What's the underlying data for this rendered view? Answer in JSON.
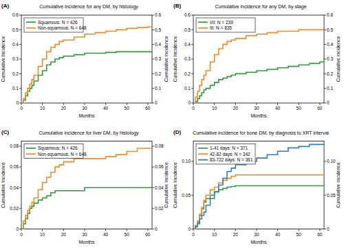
{
  "chart_data": [
    {
      "type": "line",
      "title": "Cumulative incidence for any DM, by histology",
      "annotations": [
        "(A)"
      ],
      "x_label": "Months",
      "y_label": "Cumulative Incidence",
      "y2_label": "Cumulative incidence",
      "x": [
        0,
        1,
        2,
        3,
        4,
        5,
        6,
        8,
        10,
        12,
        14,
        16,
        18,
        20,
        25,
        30,
        35,
        40,
        45,
        50,
        55,
        60,
        62
      ],
      "series": [
        {
          "name": "Squamous: N = 426",
          "color": "#2e9a3a",
          "values": [
            0,
            0.02,
            0.05,
            0.08,
            0.1,
            0.12,
            0.15,
            0.19,
            0.22,
            0.26,
            0.28,
            0.3,
            0.31,
            0.32,
            0.33,
            0.34,
            0.34,
            0.345,
            0.35,
            0.35,
            0.35,
            0.35,
            0.35
          ]
        },
        {
          "name": "Non-squamous: N = 648",
          "color": "#f28a24",
          "values": [
            0,
            0.03,
            0.07,
            0.1,
            0.13,
            0.16,
            0.19,
            0.25,
            0.3,
            0.35,
            0.38,
            0.4,
            0.42,
            0.43,
            0.45,
            0.47,
            0.48,
            0.49,
            0.5,
            0.51,
            0.515,
            0.52,
            0.52
          ]
        }
      ],
      "line_style": "step",
      "legend": "upper left",
      "grid": false,
      "xlim": [
        0,
        62
      ],
      "xticks": [
        0,
        10,
        20,
        30,
        40,
        50,
        60
      ],
      "ylim": [
        0,
        0.6
      ],
      "yticks": [
        0,
        0.1,
        0.2,
        0.3,
        0.4,
        0.5,
        0.6
      ],
      "y2lim": [
        0,
        0.6
      ],
      "y2ticks": [
        0,
        0.1,
        0.2,
        0.3,
        0.4,
        0.5,
        0.6
      ]
    },
    {
      "type": "line",
      "title": "Cumulative incidence for any DM, by stage",
      "annotations": [
        "(B)"
      ],
      "x_label": "Months",
      "y_label": "Cumulative Incidence",
      "y2_label": "Cumulative incidence",
      "x": [
        0,
        1,
        2,
        3,
        4,
        5,
        6,
        8,
        10,
        12,
        14,
        16,
        18,
        20,
        25,
        30,
        35,
        40,
        45,
        50,
        55,
        60,
        62
      ],
      "series": [
        {
          "name": "I/II: N = 239",
          "color": "#2e9a3a",
          "values": [
            0,
            0.01,
            0.03,
            0.05,
            0.07,
            0.09,
            0.1,
            0.12,
            0.14,
            0.16,
            0.17,
            0.18,
            0.19,
            0.2,
            0.21,
            0.22,
            0.23,
            0.24,
            0.25,
            0.26,
            0.27,
            0.28,
            0.29
          ]
        },
        {
          "name": "III: N = 835",
          "color": "#f28a24",
          "values": [
            0,
            0.04,
            0.08,
            0.12,
            0.16,
            0.19,
            0.22,
            0.28,
            0.33,
            0.37,
            0.4,
            0.42,
            0.43,
            0.44,
            0.46,
            0.47,
            0.48,
            0.49,
            0.49,
            0.5,
            0.5,
            0.5,
            0.5
          ]
        }
      ],
      "line_style": "step",
      "legend": "upper left",
      "grid": false,
      "xlim": [
        0,
        62
      ],
      "xticks": [
        0,
        10,
        20,
        30,
        40,
        50,
        60
      ],
      "ylim": [
        0,
        0.6
      ],
      "yticks": [
        0,
        0.1,
        0.2,
        0.3,
        0.4,
        0.5,
        0.6
      ],
      "y2lim": [
        0,
        0.6
      ],
      "y2ticks": [
        0,
        0.1,
        0.2,
        0.3,
        0.4,
        0.5,
        0.6
      ]
    },
    {
      "type": "line",
      "title": "Cumulative incidence for liver DM, by histology",
      "annotations": [
        "(C)"
      ],
      "x_label": "Months",
      "y_label": "Cumulative Incidence",
      "y2_label": "Cumulative incidence",
      "x": [
        0,
        1,
        2,
        3,
        4,
        5,
        6,
        8,
        10,
        12,
        14,
        16,
        18,
        20,
        25,
        30,
        35,
        40,
        45,
        50,
        55,
        60,
        62
      ],
      "series": [
        {
          "name": "Squamous: N = 426",
          "color": "#2e9a3a",
          "values": [
            0,
            0.005,
            0.01,
            0.015,
            0.02,
            0.022,
            0.025,
            0.028,
            0.03,
            0.032,
            0.035,
            0.037,
            0.037,
            0.037,
            0.037,
            0.04,
            0.04,
            0.04,
            0.04,
            0.04,
            0.04,
            0.04,
            0.04
          ]
        },
        {
          "name": "Non-squamous: N = 648",
          "color": "#f28a24",
          "values": [
            0,
            0.008,
            0.013,
            0.018,
            0.022,
            0.026,
            0.03,
            0.038,
            0.045,
            0.05,
            0.055,
            0.06,
            0.062,
            0.065,
            0.068,
            0.068,
            0.068,
            0.07,
            0.072,
            0.075,
            0.078,
            0.078,
            0.078
          ]
        }
      ],
      "line_style": "step",
      "legend": "upper left",
      "grid": false,
      "xlim": [
        0,
        62
      ],
      "xticks": [
        0,
        10,
        20,
        30,
        40,
        50,
        60
      ],
      "ylim": [
        0,
        0.085
      ],
      "yticks": [
        0,
        0.02,
        0.04,
        0.06,
        0.08
      ],
      "y2lim": [
        0,
        0.085
      ],
      "y2ticks": [
        0,
        0.02,
        0.04,
        0.06,
        0.08
      ]
    },
    {
      "type": "line",
      "title": "Cumulative incidence for bone DM, by diagnosis to XRT interval",
      "annotations": [
        "(D)"
      ],
      "x_label": "Months",
      "y_label": "Cumulative Incidence",
      "y2_label": "Cumulative incidence",
      "x": [
        0,
        1,
        2,
        3,
        4,
        5,
        6,
        8,
        10,
        12,
        14,
        16,
        18,
        20,
        25,
        30,
        35,
        40,
        45,
        50,
        55,
        60,
        62
      ],
      "series": [
        {
          "name": "1-41 days: N = 371",
          "color": "#2e9a3a",
          "values": [
            0,
            0.005,
            0.01,
            0.02,
            0.03,
            0.04,
            0.045,
            0.05,
            0.055,
            0.058,
            0.06,
            0.062,
            0.063,
            0.064,
            0.064,
            0.064,
            0.064,
            0.064,
            0.064,
            0.064,
            0.064,
            0.064,
            0.064
          ]
        },
        {
          "name": "42-82 days: N = 342",
          "color": "#f28a24",
          "values": [
            0,
            0.005,
            0.012,
            0.022,
            0.032,
            0.042,
            0.05,
            0.058,
            0.062,
            0.068,
            0.072,
            0.075,
            0.078,
            0.08,
            0.08,
            0.08,
            0.08,
            0.08,
            0.08,
            0.08,
            0.08,
            0.08,
            0.08
          ]
        },
        {
          "name": "83-722 days: N = 361",
          "color": "#2f7fc0",
          "values": [
            0,
            0.003,
            0.008,
            0.015,
            0.02,
            0.025,
            0.035,
            0.045,
            0.055,
            0.065,
            0.075,
            0.085,
            0.09,
            0.095,
            0.1,
            0.105,
            0.11,
            0.115,
            0.12,
            0.122,
            0.125,
            0.125,
            0.125
          ]
        }
      ],
      "line_style": "step",
      "legend": "upper left",
      "grid": false,
      "xlim": [
        0,
        62
      ],
      "xticks": [
        0,
        10,
        20,
        30,
        40,
        50,
        60
      ],
      "ylim": [
        0,
        0.13
      ],
      "yticks": [
        0,
        0.05,
        {
          "value": 0.1,
          "label": "0.10"
        }
      ],
      "y2lim": [
        0,
        0.13
      ],
      "y2ticks": [
        0,
        0.05,
        {
          "value": 0.1,
          "label": "0.10"
        }
      ]
    }
  ]
}
